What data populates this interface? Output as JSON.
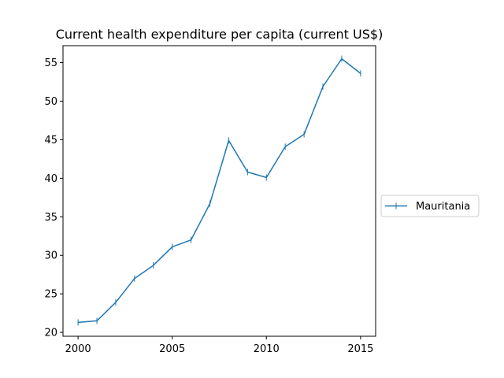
{
  "chart_data": {
    "type": "line",
    "title": "Current health expenditure per capita (current US$)",
    "xlabel": "",
    "ylabel": "",
    "xlim": [
      1999.2,
      2015.8
    ],
    "ylim": [
      19.5,
      57.2
    ],
    "xticks": [
      "2000",
      "2005",
      "2010",
      "2015"
    ],
    "yticks": [
      "20",
      "25",
      "30",
      "35",
      "40",
      "45",
      "50",
      "55"
    ],
    "grid": false,
    "legend_position": "right",
    "series": [
      {
        "name": "Mauritania",
        "color": "#1f77b4",
        "x": [
          2000,
          2001,
          2002,
          2003,
          2004,
          2005,
          2006,
          2007,
          2008,
          2009,
          2010,
          2011,
          2012,
          2013,
          2014,
          2015
        ],
        "y": [
          21.3,
          21.5,
          23.9,
          27.0,
          28.7,
          31.1,
          32.0,
          36.7,
          44.9,
          40.8,
          40.1,
          44.1,
          45.7,
          51.9,
          55.5,
          53.6
        ]
      }
    ]
  }
}
